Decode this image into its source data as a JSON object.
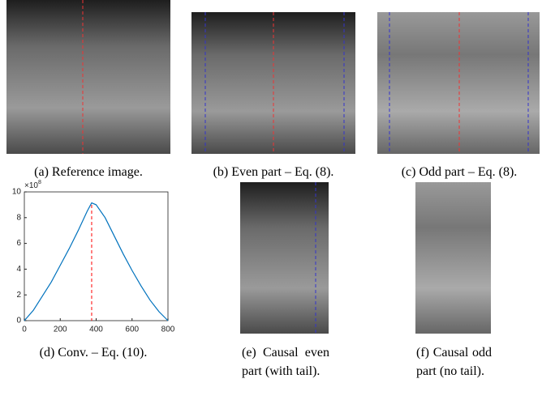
{
  "captions": [
    "(a) Reference image.",
    "(b) Even part – Eq. (8).",
    "(c) Odd part – Eq. (8).",
    "(d) Conv. – Eq. (10).",
    "(e) Causal even part (with tail).",
    "(f) Causal odd part (no tail)."
  ],
  "chart_data": {
    "type": "line",
    "y_multiplier_base": "×10",
    "y_multiplier_exp": "8",
    "x": [
      0,
      50,
      100,
      150,
      200,
      250,
      300,
      350,
      375,
      400,
      450,
      500,
      550,
      600,
      650,
      700,
      750,
      800
    ],
    "series": [
      {
        "color": "#0072bd",
        "values": [
          0,
          0.8,
          1.9,
          3.0,
          4.3,
          5.6,
          7.0,
          8.5,
          9.15,
          9.0,
          8.0,
          6.6,
          5.2,
          3.9,
          2.7,
          1.6,
          0.7,
          0
        ]
      }
    ],
    "marker_x": 375,
    "marker_color": "#ff0000",
    "xlim": [
      0,
      800
    ],
    "xticks": [
      0,
      200,
      400,
      600,
      800
    ],
    "ylim": [
      0,
      10
    ],
    "yticks": [
      0,
      2,
      4,
      6,
      8,
      10
    ]
  }
}
